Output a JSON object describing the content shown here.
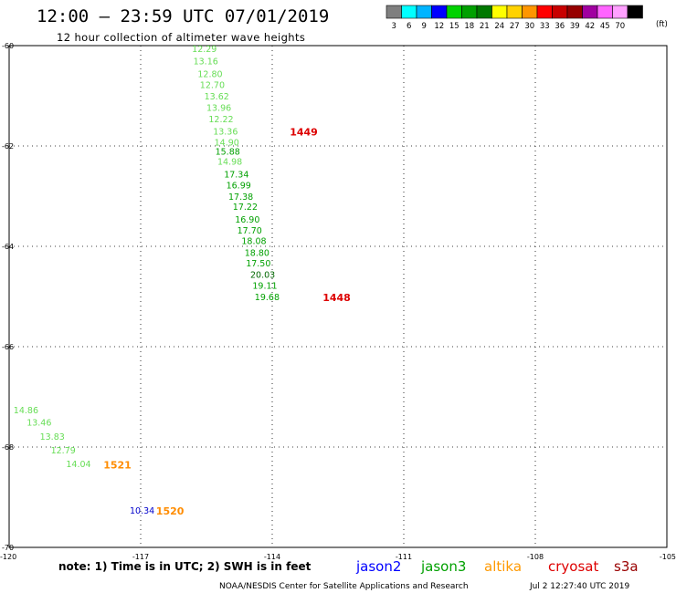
{
  "header": {
    "title": "12:00 – 23:59 UTC 07/01/2019",
    "subtitle": "12 hour collection of altimeter wave heights"
  },
  "colorbar": {
    "unit": "(ft)",
    "bins": [
      {
        "color": "#7f7f7f",
        "label": "3"
      },
      {
        "color": "#00ffff",
        "label": "6"
      },
      {
        "color": "#00b4ff",
        "label": "9"
      },
      {
        "color": "#0000ff",
        "label": "12"
      },
      {
        "color": "#00d200",
        "label": "15"
      },
      {
        "color": "#00a000",
        "label": "18"
      },
      {
        "color": "#007800",
        "label": "21"
      },
      {
        "color": "#ffff00",
        "label": "24"
      },
      {
        "color": "#ffd200",
        "label": "27"
      },
      {
        "color": "#ff9600",
        "label": "30"
      },
      {
        "color": "#ff0000",
        "label": "33"
      },
      {
        "color": "#c80000",
        "label": "36"
      },
      {
        "color": "#960000",
        "label": "39"
      },
      {
        "color": "#a000a0",
        "label": "42"
      },
      {
        "color": "#ff64ff",
        "label": "45"
      },
      {
        "color": "#ffa0ff",
        "label": "70"
      },
      {
        "color": "#000000",
        "label": ""
      }
    ]
  },
  "map": {
    "lon_range": [
      -120,
      -105
    ],
    "lat_range": [
      -70,
      -60
    ],
    "lat_ticks": [
      {
        "value": -60,
        "label": "-60"
      },
      {
        "value": -62,
        "label": "-62"
      },
      {
        "value": -64,
        "label": "-64"
      },
      {
        "value": -66,
        "label": "-66"
      },
      {
        "value": -68,
        "label": "-68"
      },
      {
        "value": -70,
        "label": "-70"
      }
    ],
    "lon_ticks": [
      {
        "value": -120,
        "label": "-120"
      },
      {
        "value": -117,
        "label": "-117"
      },
      {
        "value": -114,
        "label": "-114"
      },
      {
        "value": -111,
        "label": "-111"
      },
      {
        "value": -108,
        "label": "-108"
      },
      {
        "value": -105,
        "label": "-105"
      }
    ],
    "observations": [
      {
        "lon": -115.83,
        "lat": -60.05,
        "value": "12.29",
        "color": "#66dd55"
      },
      {
        "lon": -115.8,
        "lat": -60.3,
        "value": "13.16",
        "color": "#66dd55"
      },
      {
        "lon": -115.7,
        "lat": -60.55,
        "value": "12.80",
        "color": "#66dd55"
      },
      {
        "lon": -115.65,
        "lat": -60.77,
        "value": "12.70",
        "color": "#66dd55"
      },
      {
        "lon": -115.55,
        "lat": -61.0,
        "value": "13.62",
        "color": "#66dd55"
      },
      {
        "lon": -115.5,
        "lat": -61.23,
        "value": "13.96",
        "color": "#66dd55"
      },
      {
        "lon": -115.45,
        "lat": -61.45,
        "value": "12.22",
        "color": "#66dd55"
      },
      {
        "lon": -115.35,
        "lat": -61.7,
        "value": "13.36",
        "color": "#66dd55"
      },
      {
        "lon": -115.32,
        "lat": -61.92,
        "value": "14.90",
        "color": "#66dd55"
      },
      {
        "lon": -115.3,
        "lat": -62.1,
        "value": "15.88",
        "color": "#00a000"
      },
      {
        "lon": -115.25,
        "lat": -62.3,
        "value": "14.98",
        "color": "#66dd55"
      },
      {
        "lon": -115.1,
        "lat": -62.55,
        "value": "17.34",
        "color": "#00a000"
      },
      {
        "lon": -115.05,
        "lat": -62.77,
        "value": "16.99",
        "color": "#00a000"
      },
      {
        "lon": -115.0,
        "lat": -63.0,
        "value": "17.38",
        "color": "#00a000"
      },
      {
        "lon": -114.9,
        "lat": -63.2,
        "value": "17.22",
        "color": "#00a000"
      },
      {
        "lon": -114.85,
        "lat": -63.45,
        "value": "16.90",
        "color": "#00a000"
      },
      {
        "lon": -114.8,
        "lat": -63.67,
        "value": "17.70",
        "color": "#00a000"
      },
      {
        "lon": -114.7,
        "lat": -63.88,
        "value": "18.08",
        "color": "#00a000"
      },
      {
        "lon": -114.63,
        "lat": -64.12,
        "value": "18.80",
        "color": "#00a000"
      },
      {
        "lon": -114.6,
        "lat": -64.33,
        "value": "17.50",
        "color": "#00a000"
      },
      {
        "lon": -114.5,
        "lat": -64.55,
        "value": "20.03",
        "color": "#006600"
      },
      {
        "lon": -114.45,
        "lat": -64.77,
        "value": "19.11",
        "color": "#00a000"
      },
      {
        "lon": -114.4,
        "lat": -65.0,
        "value": "19.68",
        "color": "#00a000"
      },
      {
        "lon": -119.9,
        "lat": -67.25,
        "value": "14.86",
        "color": "#66dd55"
      },
      {
        "lon": -119.6,
        "lat": -67.5,
        "value": "13.46",
        "color": "#66dd55"
      },
      {
        "lon": -119.3,
        "lat": -67.78,
        "value": "13.83",
        "color": "#66dd55"
      },
      {
        "lon": -119.05,
        "lat": -68.05,
        "value": "12.79",
        "color": "#66dd55"
      },
      {
        "lon": -118.7,
        "lat": -68.33,
        "value": "14.04",
        "color": "#66dd55"
      },
      {
        "lon": -117.25,
        "lat": -69.25,
        "value": "10.34",
        "color": "#0000cc"
      }
    ],
    "pass_labels": [
      {
        "lon": -113.6,
        "lat": -61.72,
        "text": "1449",
        "color": "#dd0000"
      },
      {
        "lon": -112.85,
        "lat": -65.02,
        "text": "1448",
        "color": "#dd0000"
      },
      {
        "lon": -117.85,
        "lat": -68.35,
        "text": "1521",
        "color": "#ff8c00"
      },
      {
        "lon": -116.65,
        "lat": -69.27,
        "text": "1520",
        "color": "#ff8c00"
      }
    ]
  },
  "footer": {
    "note": "note: 1) Time is in UTC; 2) SWH is in feet",
    "satellites": [
      {
        "name": "jason2",
        "color": "#0000ff"
      },
      {
        "name": "jason3",
        "color": "#00a000"
      },
      {
        "name": "altika",
        "color": "#ff9900"
      },
      {
        "name": "cryosat",
        "color": "#dd0000"
      },
      {
        "name": "s3a",
        "color": "#990000"
      }
    ],
    "credit": "NOAA/NESDIS Center for Satellite Applications and Research",
    "timestamp": "Jul  2 12:27:40 UTC 2019"
  }
}
